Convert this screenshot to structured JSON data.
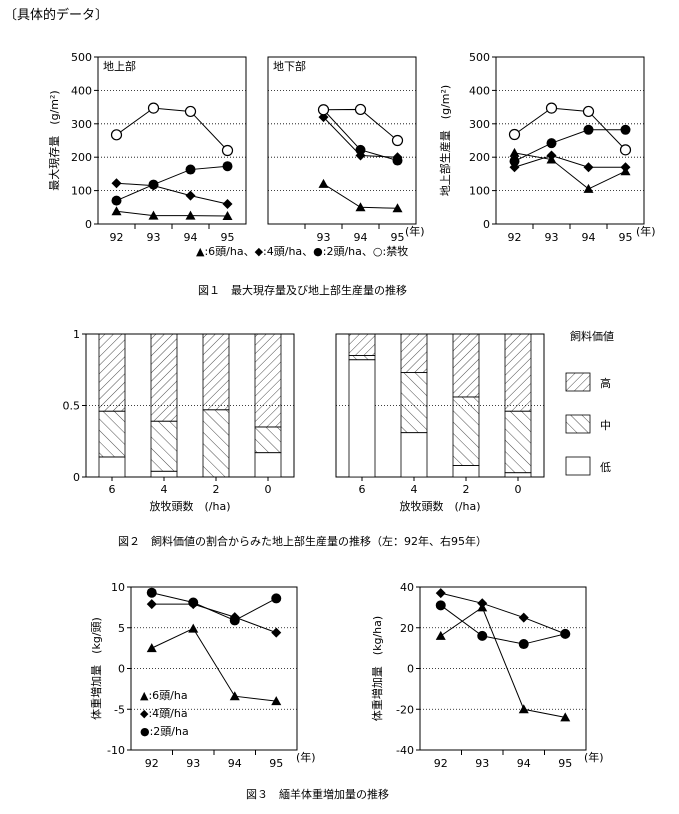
{
  "header": "〔具体的データ〕",
  "figure1": {
    "caption": "図１　最大現存量及び地上部生産量の推移",
    "legend": "▲:6頭/ha、◆:4頭/ha、●:2頭/ha、○:禁牧",
    "year_unit": "(年)"
  },
  "figure2": {
    "caption": "図２　飼料価値の割合からみた地上部生産量の推移（左：92年、右95年）",
    "xlabel": "放牧頭数　(/ha)",
    "legend_title": "飼料価値",
    "legend_items": [
      "高",
      "中",
      "低"
    ]
  },
  "figure3": {
    "caption": "図３　緬羊体重増加量の推移",
    "legend": [
      "▲:6頭/ha",
      "◆:4頭/ha",
      "●:2頭/ha"
    ],
    "year_unit": "(年)"
  },
  "chart_data": [
    {
      "type": "line",
      "panel": "fig1-a",
      "subtitle": "地上部",
      "ylabel": "最大現存量　(g/m²)",
      "ylim": [
        0,
        500
      ],
      "yticks": [
        "0",
        "100",
        "200",
        "300",
        "400",
        "500"
      ],
      "categories": [
        "92",
        "93",
        "94",
        "95"
      ],
      "series": [
        {
          "name": "6頭/ha",
          "marker": "triangle",
          "values": [
            38,
            25,
            25,
            24
          ]
        },
        {
          "name": "4頭/ha",
          "marker": "diamond",
          "values": [
            122,
            115,
            85,
            60
          ]
        },
        {
          "name": "2頭/ha",
          "marker": "filled-circle",
          "values": [
            70,
            118,
            163,
            173
          ]
        },
        {
          "name": "禁牧",
          "marker": "open-circle",
          "values": [
            267,
            347,
            337,
            220
          ]
        }
      ]
    },
    {
      "type": "line",
      "panel": "fig1-b",
      "subtitle": "地下部",
      "ylim": [
        0,
        500
      ],
      "categories": [
        "93",
        "94",
        "95"
      ],
      "series": [
        {
          "name": "6頭/ha",
          "marker": "triangle",
          "values": [
            120,
            50,
            47
          ]
        },
        {
          "name": "4頭/ha",
          "marker": "diamond",
          "values": [
            320,
            205,
            200
          ]
        },
        {
          "name": "2頭/ha",
          "marker": "filled-circle",
          "values": [
            342,
            222,
            190
          ]
        },
        {
          "name": "禁牧",
          "marker": "open-circle",
          "values": [
            342,
            343,
            250
          ]
        }
      ]
    },
    {
      "type": "line",
      "panel": "fig1-c",
      "ylabel": "地上部生産量　(g/m²)",
      "ylim": [
        0,
        500
      ],
      "yticks": [
        "0",
        "100",
        "200",
        "300",
        "400",
        "500"
      ],
      "categories": [
        "92",
        "93",
        "94",
        "95"
      ],
      "series": [
        {
          "name": "6頭/ha",
          "marker": "triangle",
          "values": [
            213,
            193,
            105,
            158
          ]
        },
        {
          "name": "4頭/ha",
          "marker": "diamond",
          "values": [
            170,
            205,
            170,
            170
          ]
        },
        {
          "name": "2頭/ha",
          "marker": "filled-circle",
          "values": [
            188,
            242,
            282,
            282
          ]
        },
        {
          "name": "禁牧",
          "marker": "open-circle",
          "values": [
            268,
            347,
            337,
            222
          ]
        }
      ]
    },
    {
      "type": "bar",
      "stacked": true,
      "panel": "fig2-left",
      "note": "92年",
      "ylim": [
        0,
        1
      ],
      "yticks": [
        "0",
        "0.5",
        "1"
      ],
      "categories": [
        "6",
        "4",
        "2",
        "0"
      ],
      "series": [
        {
          "name": "低",
          "values": [
            0.14,
            0.04,
            0.0,
            0.17
          ]
        },
        {
          "name": "中",
          "values": [
            0.32,
            0.35,
            0.47,
            0.18
          ]
        },
        {
          "name": "高",
          "values": [
            0.54,
            0.61,
            0.53,
            0.65
          ]
        }
      ]
    },
    {
      "type": "bar",
      "stacked": true,
      "panel": "fig2-right",
      "note": "95年",
      "ylim": [
        0,
        1
      ],
      "categories": [
        "6",
        "4",
        "2",
        "0"
      ],
      "series": [
        {
          "name": "低",
          "values": [
            0.82,
            0.31,
            0.08,
            0.03
          ]
        },
        {
          "name": "中",
          "values": [
            0.03,
            0.42,
            0.48,
            0.43
          ]
        },
        {
          "name": "高",
          "values": [
            0.15,
            0.27,
            0.44,
            0.54
          ]
        }
      ]
    },
    {
      "type": "line",
      "panel": "fig3-left",
      "ylabel": "体重増加量　(kg/頭)",
      "ylim": [
        -10,
        10
      ],
      "yticks": [
        "-10",
        "-5",
        "0",
        "5",
        "10"
      ],
      "categories": [
        "92",
        "93",
        "94",
        "95"
      ],
      "series": [
        {
          "name": "6頭/ha",
          "marker": "triangle",
          "values": [
            2.5,
            4.9,
            -3.4,
            -4.0
          ]
        },
        {
          "name": "4頭/ha",
          "marker": "diamond",
          "values": [
            7.9,
            7.9,
            6.3,
            4.4
          ]
        },
        {
          "name": "2頭/ha",
          "marker": "filled-circle",
          "values": [
            9.3,
            8.1,
            5.9,
            8.6
          ]
        }
      ]
    },
    {
      "type": "line",
      "panel": "fig3-right",
      "ylabel": "体重増加量　(kg/ha)",
      "ylim": [
        -40,
        40
      ],
      "yticks": [
        "-40",
        "-20",
        "0",
        "20",
        "40"
      ],
      "categories": [
        "92",
        "93",
        "94",
        "95"
      ],
      "series": [
        {
          "name": "6頭/ha",
          "marker": "triangle",
          "values": [
            16,
            30,
            -20,
            -24
          ]
        },
        {
          "name": "4頭/ha",
          "marker": "diamond",
          "values": [
            37,
            32,
            25,
            17
          ]
        },
        {
          "name": "2頭/ha",
          "marker": "filled-circle",
          "values": [
            31,
            16,
            12,
            17
          ]
        }
      ]
    }
  ]
}
